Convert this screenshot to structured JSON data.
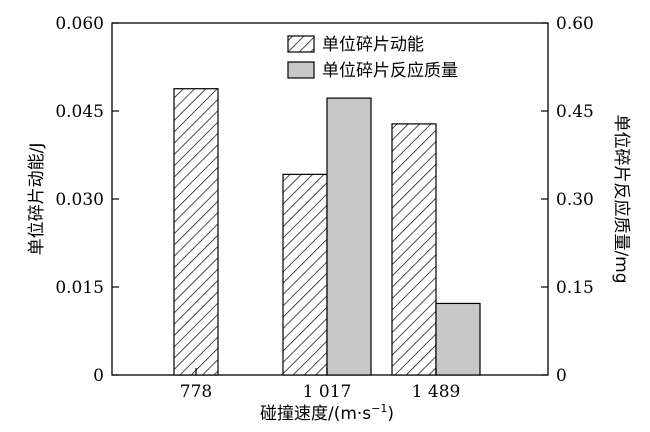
{
  "chart_data": {
    "type": "bar",
    "categories": [
      "778",
      "1 017",
      "1 489"
    ],
    "xlabel": "碰撞速度/(m·s",
    "xlabel_sup": "−1",
    "xlabel_end": ")",
    "series": [
      {
        "name": "单位碎片动能",
        "axis": "left",
        "pattern": "hatch",
        "values": [
          0.0488,
          0.0342,
          0.0428
        ]
      },
      {
        "name": "单位碎片反应质量",
        "axis": "right",
        "fill": "#c8c8c8",
        "values": [
          null,
          0.472,
          0.122
        ]
      }
    ],
    "yleft": {
      "label": "单位碎片动能/J",
      "ylim": [
        0,
        0.06
      ],
      "ticks": [
        "0",
        "0.015",
        "0.030",
        "0.045",
        "0.060"
      ]
    },
    "yright": {
      "label": "单位碎片反应质量/mg",
      "ylim": [
        0,
        0.6
      ],
      "ticks": [
        "0",
        "0.15",
        "0.30",
        "0.45",
        "0.60"
      ]
    },
    "legend_position": "top-center",
    "grid": false
  }
}
